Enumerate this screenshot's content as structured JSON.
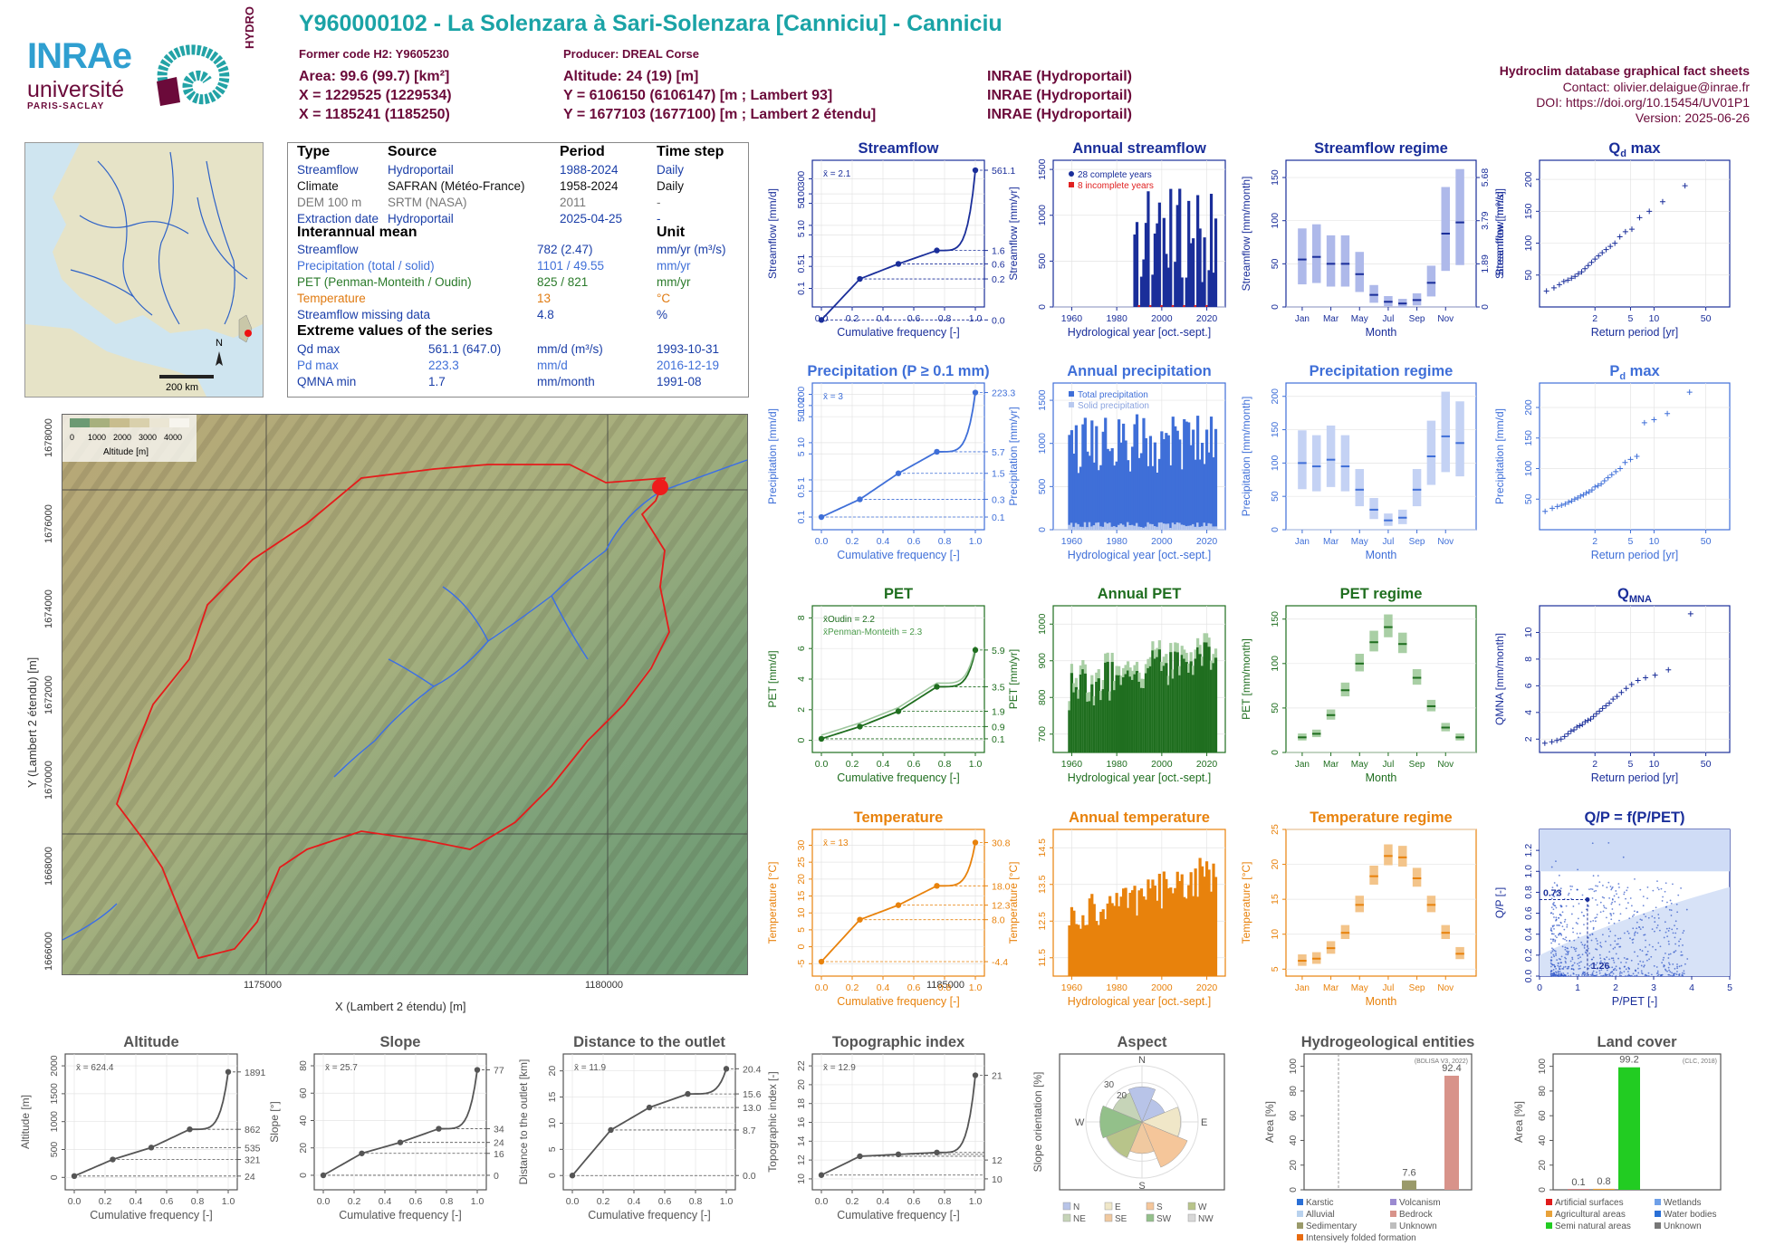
{
  "header": {
    "title": "Y960000102 - La Solenzara à Sari-Solenzara [Canniciu] - Canniciu",
    "former_code": "Former code H2: Y9605230",
    "producer": "Producer: DREAL Corse",
    "area": "Area: 99.6 (99.7) [km²]",
    "altitude": "Altitude: 24 (19) [m]",
    "x93": "X = 1229525 (1229534)",
    "y93": "Y = 6106150 (6106147) [m ; Lambert 93]",
    "x2e": "X = 1185241 (1185250)",
    "y2e": "Y = 1677103 (1677100) [m ; Lambert 2 étendu]",
    "src1": "INRAE (Hydroportail)",
    "src2": "INRAE (Hydroportail)",
    "src3": "INRAE (Hydroportail)",
    "db": "Hydroclim database graphical fact sheets",
    "contact": "Contact: olivier.delaigue@inrae.fr",
    "doi": "DOI: https://doi.org/10.15454/UV01P1",
    "version": "Version: 2025-06-26"
  },
  "logo": {
    "inrae": "INRAe",
    "univ": "université",
    "ps": "PARIS-SACLAY",
    "hydro": "HYDRO"
  },
  "inset": {
    "scale": "200 km",
    "north": "N"
  },
  "info": {
    "h_type": "Type",
    "h_source": "Source",
    "h_period": "Period",
    "h_timestep": "Time step",
    "rows": [
      {
        "type": "Streamflow",
        "source": "Hydroportail",
        "period": "1988-2024",
        "step": "Daily",
        "color": "#1a3ea8"
      },
      {
        "type": "Climate",
        "source": "SAFRAN (Météo-France)",
        "period": "1958-2024",
        "step": "Daily",
        "color": "#111111"
      },
      {
        "type": "DEM 100 m",
        "source": "SRTM (NASA)",
        "period": "2011",
        "step": "-",
        "color": "#777777"
      },
      {
        "type": "Extraction date",
        "source": "Hydroportail",
        "period": "2025-04-25",
        "step": "-",
        "color": "#1a3ea8"
      }
    ],
    "h_mean": "Interannual mean",
    "h_unit": "Unit",
    "means": [
      {
        "name": "Streamflow",
        "value": "782 (2.47)",
        "unit": "mm/yr (m³/s)",
        "color": "#1a3ea8"
      },
      {
        "name": "Precipitation (total / solid)",
        "value": "1101 / 49.55",
        "unit": "mm/yr",
        "color": "#3f6fd8"
      },
      {
        "name": "PET (Penman-Monteith / Oudin)",
        "value": "825 / 821",
        "unit": "mm/yr",
        "color": "#2a7a2a"
      },
      {
        "name": "Temperature",
        "value": "13",
        "unit": "°C",
        "color": "#e07a10"
      },
      {
        "name": "Streamflow missing data",
        "value": "4.8",
        "unit": "%",
        "color": "#1a3ea8"
      }
    ],
    "h_extreme": "Extreme values of the series",
    "extremes": [
      {
        "name": "Qd max",
        "value": "561.1 (647.0)",
        "unit": "mm/d (m³/s)",
        "date": "1993-10-31",
        "color": "#1a3ea8"
      },
      {
        "name": "Pd max",
        "value": "223.3",
        "unit": "mm/d",
        "date": "2016-12-19",
        "color": "#3f6fd8"
      },
      {
        "name": "QMNA min",
        "value": "1.7",
        "unit": "mm/month",
        "date": "1991-08",
        "color": "#1a3ea8"
      }
    ]
  },
  "map": {
    "xlabel": "X (Lambert 2 étendu) [m]",
    "ylabel": "Y (Lambert 2 étendu) [m]",
    "xticks": [
      "1175000",
      "1180000",
      "1185000"
    ],
    "yticks": [
      "1666000",
      "1668000",
      "1670000",
      "1672000",
      "1674000",
      "1676000",
      "1678000"
    ],
    "legend_title": "Altitude [m]",
    "legend_ticks": [
      "0",
      "1000",
      "2000",
      "3000",
      "4000"
    ]
  },
  "colors": {
    "flow": "#1a2e9a",
    "precip": "#3f6fd8",
    "pet": "#1f6e1f",
    "temp": "#e8820c",
    "grey": "#555555"
  },
  "chart_data": [
    {
      "id": "streamflow",
      "title": "Streamflow",
      "type": "line",
      "xlabel": "Cumulative frequency [-]",
      "ylabel": "Streamflow [mm/d]",
      "scale": "log",
      "mean_label": "x̄ = 2.1",
      "yticks": [
        "0.1",
        "0.5",
        "1",
        "5",
        "10",
        "50",
        "100",
        "300"
      ],
      "xticks": [
        "0.0",
        "0.2",
        "0.4",
        "0.6",
        "0.8",
        "1.0"
      ],
      "right_ticks": [
        "561.1",
        "1.6",
        "0.6",
        "0.2",
        "0.0"
      ],
      "x": [
        0,
        0.25,
        0.5,
        0.75,
        1.0
      ],
      "values": [
        0.0,
        0.2,
        0.6,
        1.6,
        561.1
      ]
    },
    {
      "id": "annual_streamflow",
      "title": "Annual streamflow",
      "type": "bar",
      "xlabel": "Hydrological year [oct.-sept.]",
      "ylabel": "Streamflow [mm/yr]",
      "legend": [
        "28 complete years",
        "8 incomplete years"
      ],
      "ylim": [
        0,
        1500
      ],
      "yticks": [
        "0",
        "500",
        "1000",
        "1500"
      ],
      "xticks": [
        "1960",
        "1980",
        "2000",
        "2020"
      ]
    },
    {
      "id": "streamflow_regime",
      "title": "Streamflow regime",
      "type": "bar",
      "xlabel": "Month",
      "ylabel": "Streamflow [mm/month]",
      "right_label": "Streamflow [m³/s]",
      "yticks": [
        "0",
        "50",
        "100",
        "150"
      ],
      "right_ticks": [
        "0",
        "1.89",
        "3.79",
        "5.68"
      ],
      "xticks": [
        "Jan",
        "Mar",
        "May",
        "Jul",
        "Sep",
        "Nov"
      ],
      "values": [
        55,
        58,
        50,
        50,
        38,
        14,
        6,
        4,
        8,
        28,
        85,
        98
      ]
    },
    {
      "id": "qd_max",
      "title": "Qd max",
      "type": "scatter",
      "xlabel": "Return period [yr]",
      "ylabel": "Streamflow [mm/d]",
      "yticks": [
        "50",
        "100",
        "150",
        "200"
      ],
      "xticks": [
        "2",
        "5",
        "10",
        "50"
      ]
    },
    {
      "id": "precipitation",
      "title": "Precipitation (P ≥ 0.1 mm)",
      "type": "line",
      "xlabel": "Cumulative frequency [-]",
      "ylabel": "Precipitation [mm/d]",
      "scale": "log",
      "mean_label": "x̄ = 3",
      "yticks": [
        "0.1",
        "0.5",
        "1",
        "5",
        "10",
        "50",
        "100",
        "200"
      ],
      "xticks": [
        "0.0",
        "0.2",
        "0.4",
        "0.6",
        "0.8",
        "1.0"
      ],
      "right_ticks": [
        "223.3",
        "5.7",
        "1.5",
        "0.3",
        "0.1"
      ],
      "x": [
        0,
        0.25,
        0.5,
        0.75,
        1.0
      ],
      "values": [
        0.1,
        0.3,
        1.5,
        5.7,
        223.3
      ]
    },
    {
      "id": "annual_precipitation",
      "title": "Annual precipitation",
      "type": "bar",
      "xlabel": "Hydrological year [oct.-sept.]",
      "ylabel": "Precipitation [mm/yr]",
      "legend": [
        "Total precipitation",
        "Solid precipitation"
      ],
      "ylim": [
        0,
        1600
      ],
      "yticks": [
        "0",
        "500",
        "1000",
        "1500"
      ],
      "xticks": [
        "1960",
        "1980",
        "2000",
        "2020"
      ]
    },
    {
      "id": "precipitation_regime",
      "title": "Precipitation regime",
      "type": "bar",
      "xlabel": "Month",
      "ylabel": "Precipitation [mm/month]",
      "yticks": [
        "0",
        "50",
        "100",
        "150",
        "200"
      ],
      "xticks": [
        "Jan",
        "Mar",
        "May",
        "Jul",
        "Sep",
        "Nov"
      ],
      "values": [
        100,
        95,
        105,
        95,
        60,
        30,
        14,
        18,
        60,
        110,
        140,
        130
      ]
    },
    {
      "id": "pd_max",
      "title": "Pd max",
      "type": "scatter",
      "xlabel": "Return period [yr]",
      "ylabel": "Precipitation [mm/d]",
      "yticks": [
        "50",
        "100",
        "150",
        "200"
      ],
      "xticks": [
        "2",
        "5",
        "10",
        "50"
      ]
    },
    {
      "id": "pet",
      "title": "PET",
      "type": "line",
      "xlabel": "Cumulative frequency [-]",
      "ylabel": "PET [mm/d]",
      "mean_label": "x̄Oudin = 2.2",
      "mean_label2": "x̄Penman-Monteith = 2.3",
      "yticks": [
        "0",
        "2",
        "4",
        "6",
        "8"
      ],
      "xticks": [
        "0.0",
        "0.2",
        "0.4",
        "0.6",
        "0.8",
        "1.0"
      ],
      "right_ticks": [
        "5.9",
        "3.5",
        "1.9",
        "0.9",
        "0.1"
      ],
      "x": [
        0,
        0.25,
        0.5,
        0.75,
        1.0
      ],
      "values": [
        0.1,
        0.9,
        1.9,
        3.5,
        5.9
      ]
    },
    {
      "id": "annual_pet",
      "title": "Annual PET",
      "type": "bar",
      "xlabel": "Hydrological year [oct.-sept.]",
      "ylabel": "PET [mm/yr]",
      "ylim": [
        650,
        1050
      ],
      "yticks": [
        "700",
        "800",
        "900",
        "1000"
      ],
      "xticks": [
        "1960",
        "1980",
        "2000",
        "2020"
      ]
    },
    {
      "id": "pet_regime",
      "title": "PET regime",
      "type": "bar",
      "xlabel": "Month",
      "ylabel": "PET [mm/month]",
      "yticks": [
        "0",
        "50",
        "100",
        "150"
      ],
      "xticks": [
        "Jan",
        "Mar",
        "May",
        "Jul",
        "Sep",
        "Nov"
      ],
      "values": [
        17,
        21,
        42,
        70,
        100,
        124,
        141,
        122,
        84,
        52,
        28,
        17
      ]
    },
    {
      "id": "qmna",
      "title": "QMNA",
      "type": "scatter",
      "xlabel": "Return period [yr]",
      "ylabel": "QMNA [mm/month]",
      "yticks": [
        "2",
        "4",
        "6",
        "8",
        "10"
      ],
      "xticks": [
        "2",
        "5",
        "10",
        "50"
      ]
    },
    {
      "id": "temperature",
      "title": "Temperature",
      "type": "line",
      "xlabel": "Cumulative frequency [-]",
      "ylabel": "Temperature [°C]",
      "mean_label": "x̄ = 13",
      "yticks": [
        "-5",
        "0",
        "5",
        "10",
        "15",
        "20",
        "25",
        "30"
      ],
      "xticks": [
        "0.0",
        "0.2",
        "0.4",
        "0.6",
        "0.8",
        "1.0"
      ],
      "right_ticks": [
        "30.8",
        "18.0",
        "12.3",
        "8.0",
        "-4.4"
      ],
      "x": [
        0,
        0.25,
        0.5,
        0.75,
        1.0
      ],
      "values": [
        -4.4,
        8.0,
        12.3,
        18.0,
        30.8
      ]
    },
    {
      "id": "annual_temperature",
      "title": "Annual temperature",
      "type": "bar",
      "xlabel": "Hydrological year [oct.-sept.]",
      "ylabel": "Temperature [°C]",
      "ylim": [
        11,
        15
      ],
      "yticks": [
        "11.5",
        "12.5",
        "13.5",
        "14.5"
      ],
      "xticks": [
        "1960",
        "1980",
        "2000",
        "2020"
      ]
    },
    {
      "id": "temperature_regime",
      "title": "Temperature regime",
      "type": "bar",
      "xlabel": "Month",
      "ylabel": "Temperature [°C]",
      "yticks": [
        "5",
        "10",
        "15",
        "20",
        "25"
      ],
      "xticks": [
        "Jan",
        "Mar",
        "May",
        "Jul",
        "Sep",
        "Nov"
      ],
      "values": [
        6.2,
        6.5,
        8,
        10.2,
        14.2,
        18.3,
        21.2,
        21,
        18,
        14.2,
        10.2,
        7.2
      ]
    },
    {
      "id": "q_p",
      "title": "Q/P = f(P/PET)",
      "type": "scatter",
      "xlabel": "P/PET [-]",
      "ylabel": "Q/P [-]",
      "annotations": [
        "0.73",
        "1.26"
      ],
      "yticks": [
        "0.0",
        "0.2",
        "0.4",
        "0.6",
        "0.8",
        "1.0",
        "1.2"
      ],
      "xticks": [
        "0",
        "1",
        "2",
        "3",
        "4",
        "5"
      ]
    },
    {
      "id": "altitude",
      "title": "Altitude",
      "type": "line",
      "xlabel": "Cumulative frequency [-]",
      "ylabel": "Altitude [m]",
      "mean_label": "x̄ = 624.4",
      "yticks": [
        "0",
        "500",
        "1000",
        "1500",
        "2000"
      ],
      "xticks": [
        "0.0",
        "0.2",
        "0.4",
        "0.6",
        "0.8",
        "1.0"
      ],
      "right_ticks": [
        "1891",
        "862",
        "535",
        "321",
        "24"
      ],
      "x": [
        0,
        0.25,
        0.5,
        0.75,
        1.0
      ],
      "values": [
        24,
        321,
        535,
        862,
        1891
      ]
    },
    {
      "id": "slope",
      "title": "Slope",
      "type": "line",
      "xlabel": "Cumulative frequency [-]",
      "ylabel": "Slope [°]",
      "mean_label": "x̄ = 25.7",
      "yticks": [
        "0",
        "20",
        "40",
        "60",
        "80"
      ],
      "xticks": [
        "0.0",
        "0.2",
        "0.4",
        "0.6",
        "0.8",
        "1.0"
      ],
      "right_ticks": [
        "77",
        "34",
        "24",
        "16",
        "0"
      ],
      "x": [
        0,
        0.25,
        0.5,
        0.75,
        1.0
      ],
      "values": [
        0,
        16,
        24,
        34,
        77
      ]
    },
    {
      "id": "distance",
      "title": "Distance to the outlet",
      "type": "line",
      "xlabel": "Cumulative frequency [-]",
      "ylabel": "Distance to the outlet [km]",
      "mean_label": "x̄ = 11.9",
      "yticks": [
        "0",
        "5",
        "10",
        "15",
        "20"
      ],
      "xticks": [
        "0.0",
        "0.2",
        "0.4",
        "0.6",
        "0.8",
        "1.0"
      ],
      "right_ticks": [
        "20.4",
        "15.6",
        "13.0",
        "8.7",
        "0.0"
      ],
      "x": [
        0,
        0.25,
        0.5,
        0.75,
        1.0
      ],
      "values": [
        0.0,
        8.7,
        13.0,
        15.6,
        20.4
      ]
    },
    {
      "id": "topo",
      "title": "Topographic index",
      "type": "line",
      "xlabel": "Cumulative frequency [-]",
      "ylabel": "Topographic index [-]",
      "mean_label": "x̄ = 12.9",
      "yticks": [
        "10",
        "12",
        "14",
        "16",
        "18",
        "20",
        "22"
      ],
      "xticks": [
        "0.0",
        "0.2",
        "0.4",
        "0.6",
        "0.8",
        "1.0"
      ],
      "right_ticks": [
        "21",
        "12",
        "10"
      ],
      "x": [
        0,
        0.25,
        0.5,
        0.75,
        1.0
      ],
      "values": [
        10.4,
        12.4,
        12.6,
        12.8,
        21
      ]
    },
    {
      "id": "aspect",
      "title": "Aspect",
      "type": "pie",
      "ylabel": "Slope orientation [%]",
      "labels": [
        "N",
        "E",
        "S",
        "W"
      ],
      "rings": [
        "20",
        "30"
      ],
      "legend": [
        "N",
        "E",
        "S",
        "W",
        "NE",
        "SE",
        "SW",
        "NW"
      ]
    },
    {
      "id": "hydrogeo",
      "title": "Hydrogeological entities",
      "type": "bar",
      "ylabel": "Area [%]",
      "note": "(BDLISA V3, 2022)",
      "yticks": [
        "0",
        "20",
        "40",
        "60",
        "80",
        "100"
      ],
      "values": [
        7.6,
        92.4
      ],
      "value_labels": [
        "7.6",
        "92.4"
      ],
      "legend": [
        "Karstic",
        "Volcanism",
        "Alluvial",
        "Bedrock",
        "Sedimentary",
        "Unknown",
        "Intensively folded formation"
      ]
    },
    {
      "id": "landcover",
      "title": "Land cover",
      "type": "bar",
      "ylabel": "Area [%]",
      "note": "(CLC, 2018)",
      "yticks": [
        "0",
        "20",
        "40",
        "60",
        "80",
        "100"
      ],
      "values": [
        0.1,
        0.8,
        99.2
      ],
      "value_labels": [
        "0.1",
        "0.8",
        "99.2"
      ],
      "legend": [
        "Artificial surfaces",
        "Wetlands",
        "Agricultural areas",
        "Water bodies",
        "Semi natural areas",
        "Unknown"
      ]
    }
  ]
}
